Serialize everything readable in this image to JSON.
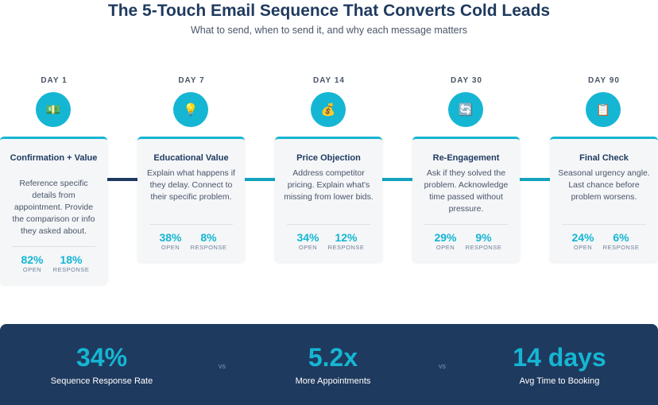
{
  "header": {
    "title": "The 5-Touch Email Sequence That Converts Cold Leads",
    "subtitle": "What to send, when to send it, and why each message matters"
  },
  "steps": [
    {
      "day": "DAY 1",
      "icon": "cash-icon",
      "glyph": "💵",
      "title": "Confirmation + Value",
      "description": "Reference specific details from appointment. Provide the comparison or info they asked about.",
      "open_value": "82%",
      "open_label": "OPEN",
      "response_value": "18%",
      "response_label": "RESPONSE"
    },
    {
      "day": "DAY 7",
      "icon": "lightbulb-icon",
      "glyph": "💡",
      "title": "Educational Value",
      "description": "Explain what happens if they delay. Connect to their specific problem.",
      "open_value": "38%",
      "open_label": "OPEN",
      "response_value": "8%",
      "response_label": "RESPONSE"
    },
    {
      "day": "DAY 14",
      "icon": "money-bag-icon",
      "glyph": "💰",
      "title": "Price Objection",
      "description": "Address competitor pricing. Explain what's missing from lower bids.",
      "open_value": "34%",
      "open_label": "OPEN",
      "response_value": "12%",
      "response_label": "RESPONSE"
    },
    {
      "day": "DAY 30",
      "icon": "refresh-icon",
      "glyph": "🔄",
      "title": "Re-Engagement",
      "description": "Ask if they solved the problem. Acknowledge time passed without pressure.",
      "open_value": "29%",
      "open_label": "OPEN",
      "response_value": "9%",
      "response_label": "RESPONSE"
    },
    {
      "day": "DAY 90",
      "icon": "clipboard-icon",
      "glyph": "📋",
      "title": "Final Check",
      "description": "Seasonal urgency angle. Last chance before problem worsens.",
      "open_value": "24%",
      "open_label": "OPEN",
      "response_value": "6%",
      "response_label": "RESPONSE"
    }
  ],
  "summary": {
    "stats": [
      {
        "value": "34%",
        "label": "Sequence Response Rate"
      },
      {
        "value": "5.2x",
        "label": "More Appointments"
      },
      {
        "value": "14 days",
        "label": "Avg Time to Booking"
      }
    ],
    "separator": "vs"
  },
  "colors": {
    "accent": "#15b6d3",
    "navy": "#1f3a5f",
    "card_bg": "#f4f6f8"
  }
}
